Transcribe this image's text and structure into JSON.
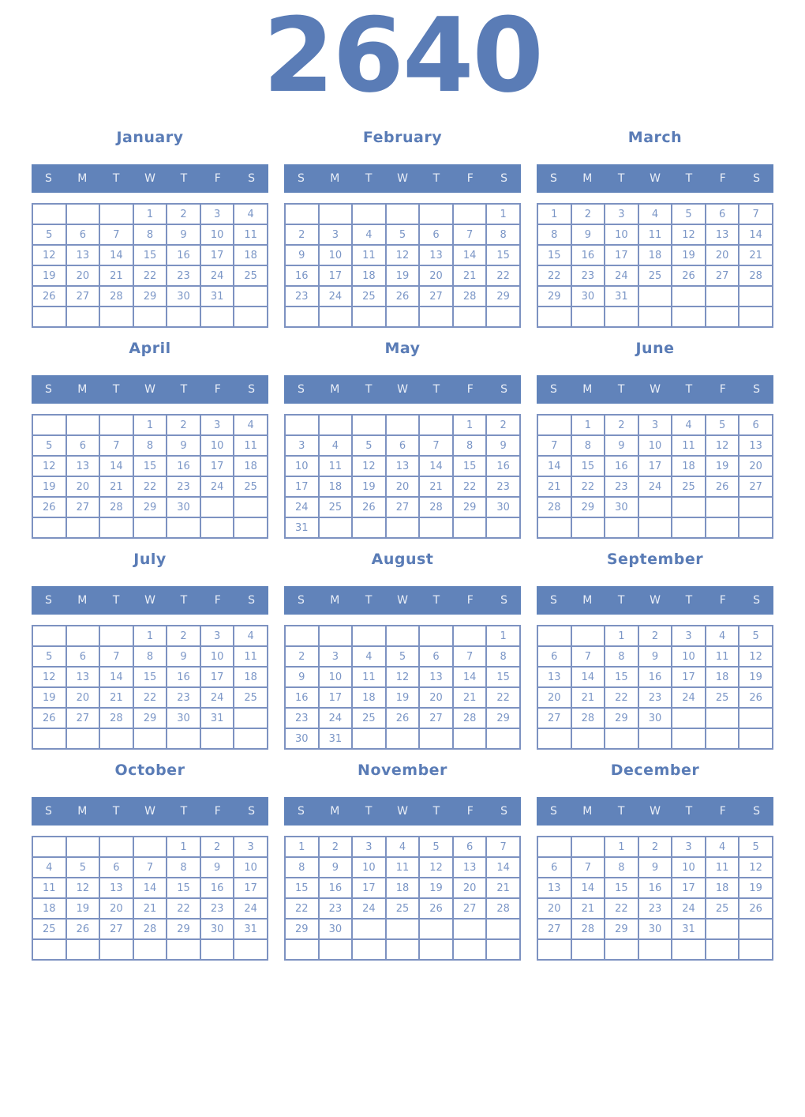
{
  "year": "2640",
  "weekday_labels": [
    "S",
    "M",
    "T",
    "W",
    "T",
    "F",
    "S"
  ],
  "colors": {
    "header_bg": "#6183ba",
    "header_text": "#e9eef7",
    "title_text": "#5a7cb6",
    "day_number_text": "#7b96c6",
    "grid_border": "#7d92c1",
    "page_bg": "#ffffff"
  },
  "months": [
    {
      "name": "January",
      "weeks": [
        [
          "",
          "",
          "",
          "1",
          "2",
          "3",
          "4"
        ],
        [
          "5",
          "6",
          "7",
          "8",
          "9",
          "10",
          "11"
        ],
        [
          "12",
          "13",
          "14",
          "15",
          "16",
          "17",
          "18"
        ],
        [
          "19",
          "20",
          "21",
          "22",
          "23",
          "24",
          "25"
        ],
        [
          "26",
          "27",
          "28",
          "29",
          "30",
          "31",
          ""
        ],
        [
          "",
          "",
          "",
          "",
          "",
          "",
          ""
        ]
      ]
    },
    {
      "name": "February",
      "weeks": [
        [
          "",
          "",
          "",
          "",
          "",
          "",
          "1"
        ],
        [
          "2",
          "3",
          "4",
          "5",
          "6",
          "7",
          "8"
        ],
        [
          "9",
          "10",
          "11",
          "12",
          "13",
          "14",
          "15"
        ],
        [
          "16",
          "17",
          "18",
          "19",
          "20",
          "21",
          "22"
        ],
        [
          "23",
          "24",
          "25",
          "26",
          "27",
          "28",
          "29"
        ],
        [
          "",
          "",
          "",
          "",
          "",
          "",
          ""
        ]
      ]
    },
    {
      "name": "March",
      "weeks": [
        [
          "1",
          "2",
          "3",
          "4",
          "5",
          "6",
          "7"
        ],
        [
          "8",
          "9",
          "10",
          "11",
          "12",
          "13",
          "14"
        ],
        [
          "15",
          "16",
          "17",
          "18",
          "19",
          "20",
          "21"
        ],
        [
          "22",
          "23",
          "24",
          "25",
          "26",
          "27",
          "28"
        ],
        [
          "29",
          "30",
          "31",
          "",
          "",
          "",
          ""
        ],
        [
          "",
          "",
          "",
          "",
          "",
          "",
          ""
        ]
      ]
    },
    {
      "name": "April",
      "weeks": [
        [
          "",
          "",
          "",
          "1",
          "2",
          "3",
          "4"
        ],
        [
          "5",
          "6",
          "7",
          "8",
          "9",
          "10",
          "11"
        ],
        [
          "12",
          "13",
          "14",
          "15",
          "16",
          "17",
          "18"
        ],
        [
          "19",
          "20",
          "21",
          "22",
          "23",
          "24",
          "25"
        ],
        [
          "26",
          "27",
          "28",
          "29",
          "30",
          "",
          ""
        ],
        [
          "",
          "",
          "",
          "",
          "",
          "",
          ""
        ]
      ]
    },
    {
      "name": "May",
      "weeks": [
        [
          "",
          "",
          "",
          "",
          "",
          "1",
          "2"
        ],
        [
          "3",
          "4",
          "5",
          "6",
          "7",
          "8",
          "9"
        ],
        [
          "10",
          "11",
          "12",
          "13",
          "14",
          "15",
          "16"
        ],
        [
          "17",
          "18",
          "19",
          "20",
          "21",
          "22",
          "23"
        ],
        [
          "24",
          "25",
          "26",
          "27",
          "28",
          "29",
          "30"
        ],
        [
          "31",
          "",
          "",
          "",
          "",
          "",
          ""
        ]
      ]
    },
    {
      "name": "June",
      "weeks": [
        [
          "",
          "1",
          "2",
          "3",
          "4",
          "5",
          "6"
        ],
        [
          "7",
          "8",
          "9",
          "10",
          "11",
          "12",
          "13"
        ],
        [
          "14",
          "15",
          "16",
          "17",
          "18",
          "19",
          "20"
        ],
        [
          "21",
          "22",
          "23",
          "24",
          "25",
          "26",
          "27"
        ],
        [
          "28",
          "29",
          "30",
          "",
          "",
          "",
          ""
        ],
        [
          "",
          "",
          "",
          "",
          "",
          "",
          ""
        ]
      ]
    },
    {
      "name": "July",
      "weeks": [
        [
          "",
          "",
          "",
          "1",
          "2",
          "3",
          "4"
        ],
        [
          "5",
          "6",
          "7",
          "8",
          "9",
          "10",
          "11"
        ],
        [
          "12",
          "13",
          "14",
          "15",
          "16",
          "17",
          "18"
        ],
        [
          "19",
          "20",
          "21",
          "22",
          "23",
          "24",
          "25"
        ],
        [
          "26",
          "27",
          "28",
          "29",
          "30",
          "31",
          ""
        ],
        [
          "",
          "",
          "",
          "",
          "",
          "",
          ""
        ]
      ]
    },
    {
      "name": "August",
      "weeks": [
        [
          "",
          "",
          "",
          "",
          "",
          "",
          "1"
        ],
        [
          "2",
          "3",
          "4",
          "5",
          "6",
          "7",
          "8"
        ],
        [
          "9",
          "10",
          "11",
          "12",
          "13",
          "14",
          "15"
        ],
        [
          "16",
          "17",
          "18",
          "19",
          "20",
          "21",
          "22"
        ],
        [
          "23",
          "24",
          "25",
          "26",
          "27",
          "28",
          "29"
        ],
        [
          "30",
          "31",
          "",
          "",
          "",
          "",
          ""
        ]
      ]
    },
    {
      "name": "September",
      "weeks": [
        [
          "",
          "",
          "1",
          "2",
          "3",
          "4",
          "5"
        ],
        [
          "6",
          "7",
          "8",
          "9",
          "10",
          "11",
          "12"
        ],
        [
          "13",
          "14",
          "15",
          "16",
          "17",
          "18",
          "19"
        ],
        [
          "20",
          "21",
          "22",
          "23",
          "24",
          "25",
          "26"
        ],
        [
          "27",
          "28",
          "29",
          "30",
          "",
          "",
          ""
        ],
        [
          "",
          "",
          "",
          "",
          "",
          "",
          ""
        ]
      ]
    },
    {
      "name": "October",
      "weeks": [
        [
          "",
          "",
          "",
          "",
          "1",
          "2",
          "3"
        ],
        [
          "4",
          "5",
          "6",
          "7",
          "8",
          "9",
          "10"
        ],
        [
          "11",
          "12",
          "13",
          "14",
          "15",
          "16",
          "17"
        ],
        [
          "18",
          "19",
          "20",
          "21",
          "22",
          "23",
          "24"
        ],
        [
          "25",
          "26",
          "27",
          "28",
          "29",
          "30",
          "31"
        ],
        [
          "",
          "",
          "",
          "",
          "",
          "",
          ""
        ]
      ]
    },
    {
      "name": "November",
      "weeks": [
        [
          "1",
          "2",
          "3",
          "4",
          "5",
          "6",
          "7"
        ],
        [
          "8",
          "9",
          "10",
          "11",
          "12",
          "13",
          "14"
        ],
        [
          "15",
          "16",
          "17",
          "18",
          "19",
          "20",
          "21"
        ],
        [
          "22",
          "23",
          "24",
          "25",
          "26",
          "27",
          "28"
        ],
        [
          "29",
          "30",
          "",
          "",
          "",
          "",
          ""
        ],
        [
          "",
          "",
          "",
          "",
          "",
          "",
          ""
        ]
      ]
    },
    {
      "name": "December",
      "weeks": [
        [
          "",
          "",
          "1",
          "2",
          "3",
          "4",
          "5"
        ],
        [
          "6",
          "7",
          "8",
          "9",
          "10",
          "11",
          "12"
        ],
        [
          "13",
          "14",
          "15",
          "16",
          "17",
          "18",
          "19"
        ],
        [
          "20",
          "21",
          "22",
          "23",
          "24",
          "25",
          "26"
        ],
        [
          "27",
          "28",
          "29",
          "30",
          "31",
          "",
          ""
        ],
        [
          "",
          "",
          "",
          "",
          "",
          "",
          ""
        ]
      ]
    }
  ]
}
